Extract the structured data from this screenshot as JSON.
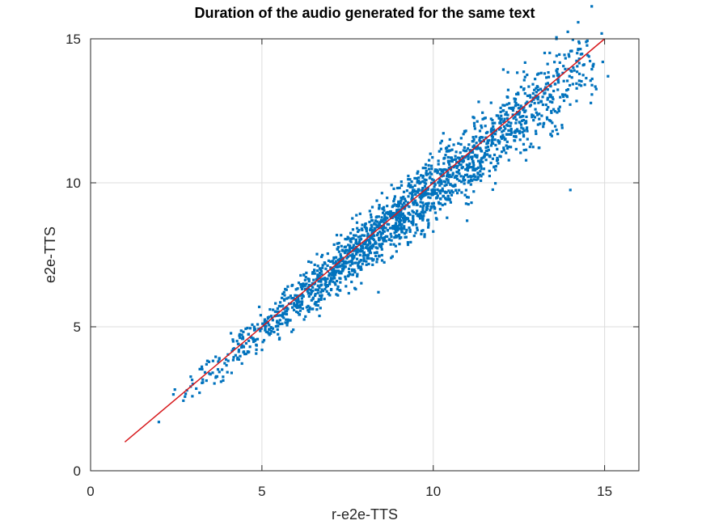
{
  "chart_data": {
    "type": "scatter",
    "title": "Duration of the audio generated for the same text",
    "xlabel": "r-e2e-TTS",
    "ylabel": "e2e-TTS",
    "xlim": [
      0,
      16
    ],
    "ylim": [
      0,
      15
    ],
    "xticks": [
      0,
      5,
      10,
      15
    ],
    "yticks": [
      0,
      5,
      10,
      15
    ],
    "grid": true,
    "series": [
      {
        "name": "",
        "type": "scatter",
        "color": "#0072BD",
        "points": {
          "n": 2000,
          "x_range": [
            1.4,
            15.1
          ],
          "relation": "y approximately equals x, spread increasing with x",
          "outliers": [
            [
              14.0,
              9.75
            ],
            [
              8.4,
              6.2
            ],
            [
              15.1,
              13.7
            ]
          ]
        }
      },
      {
        "name": "",
        "type": "line",
        "color": "#D7191C",
        "x": [
          1,
          15
        ],
        "y": [
          1,
          15
        ]
      }
    ]
  }
}
